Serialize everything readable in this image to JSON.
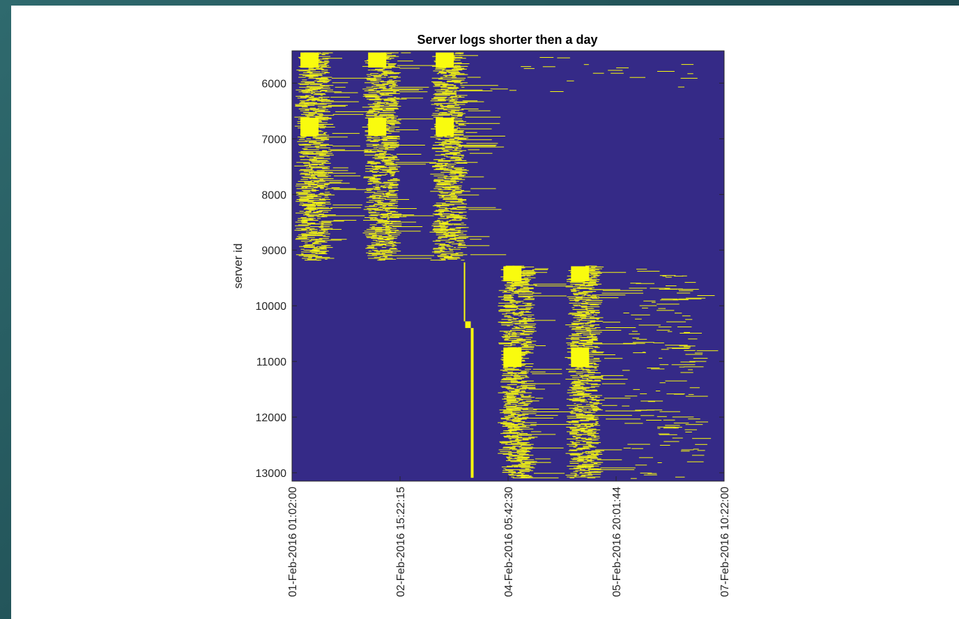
{
  "chart_data": {
    "type": "heatmap",
    "title": "Server logs shorter then a day",
    "ylabel": "server id",
    "xlabel": "",
    "ylim": [
      5420,
      13150
    ],
    "y_direction": "reversed",
    "y_ticks": [
      "6000",
      "7000",
      "8000",
      "9000",
      "10000",
      "11000",
      "12000",
      "13000"
    ],
    "x_ticks": [
      "01-Feb-2016 01:02:00",
      "02-Feb-2016 15:22:15",
      "04-Feb-2016 05:42:30",
      "05-Feb-2016 20:01:44",
      "07-Feb-2016 10:22:00"
    ],
    "background_color": "#352a87",
    "mark_color": "#f9fb0e",
    "grid": false,
    "activity_bands": [
      {
        "center": "01-Feb-2016 07:00",
        "server_id_range": [
          5450,
          9180
        ]
      },
      {
        "center": "02-Feb-2016 07:00",
        "server_id_range": [
          5450,
          9180
        ]
      },
      {
        "center": "03-Feb-2016 07:00",
        "server_id_range": [
          5450,
          9180
        ]
      },
      {
        "center": "04-Feb-2016 07:00",
        "server_id_range": [
          9280,
          13100
        ]
      },
      {
        "center": "05-Feb-2016 07:00",
        "server_id_range": [
          9280,
          13100
        ]
      }
    ]
  }
}
